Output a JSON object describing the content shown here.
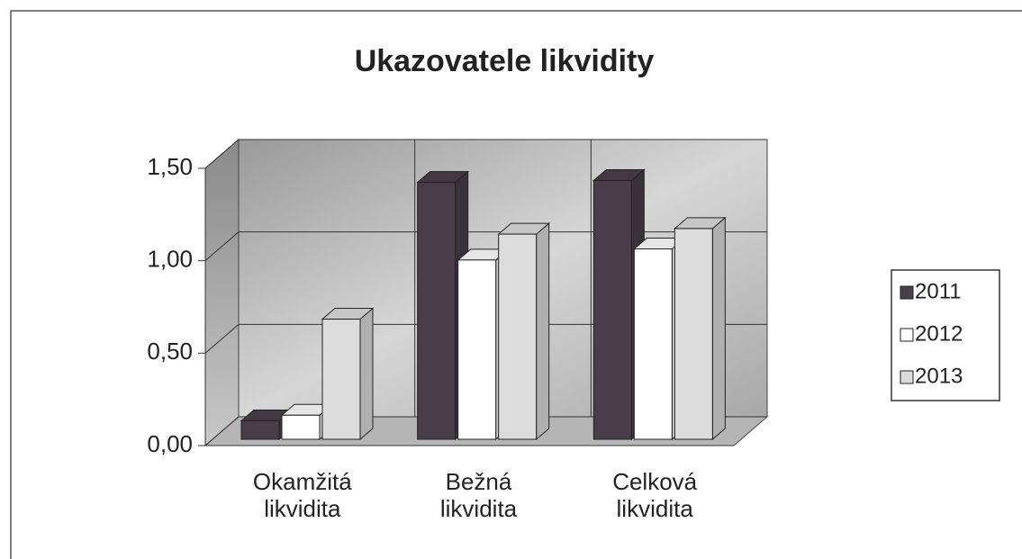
{
  "chart_data": {
    "type": "bar3d",
    "title": "Ukazovatele likvidity",
    "categories": [
      "Okamžitá likvidita",
      "Bežná likvidita",
      "Celková likvidita"
    ],
    "series": [
      {
        "name": "2011",
        "color": "#4a3d4a",
        "values": [
          0.1,
          1.39,
          1.4
        ]
      },
      {
        "name": "2012",
        "color": "#ffffff",
        "values": [
          0.13,
          0.97,
          1.03
        ]
      },
      {
        "name": "2013",
        "color": "#dcdcdc",
        "values": [
          0.65,
          1.11,
          1.14
        ]
      }
    ],
    "ylim": [
      0,
      1.5
    ],
    "yticks": [
      {
        "value": 0,
        "label": "0,00"
      },
      {
        "value": 0.5,
        "label": "0,50"
      },
      {
        "value": 1,
        "label": "1,00"
      },
      {
        "value": 1.5,
        "label": "1,50"
      }
    ],
    "grid": true,
    "legend": "right"
  }
}
